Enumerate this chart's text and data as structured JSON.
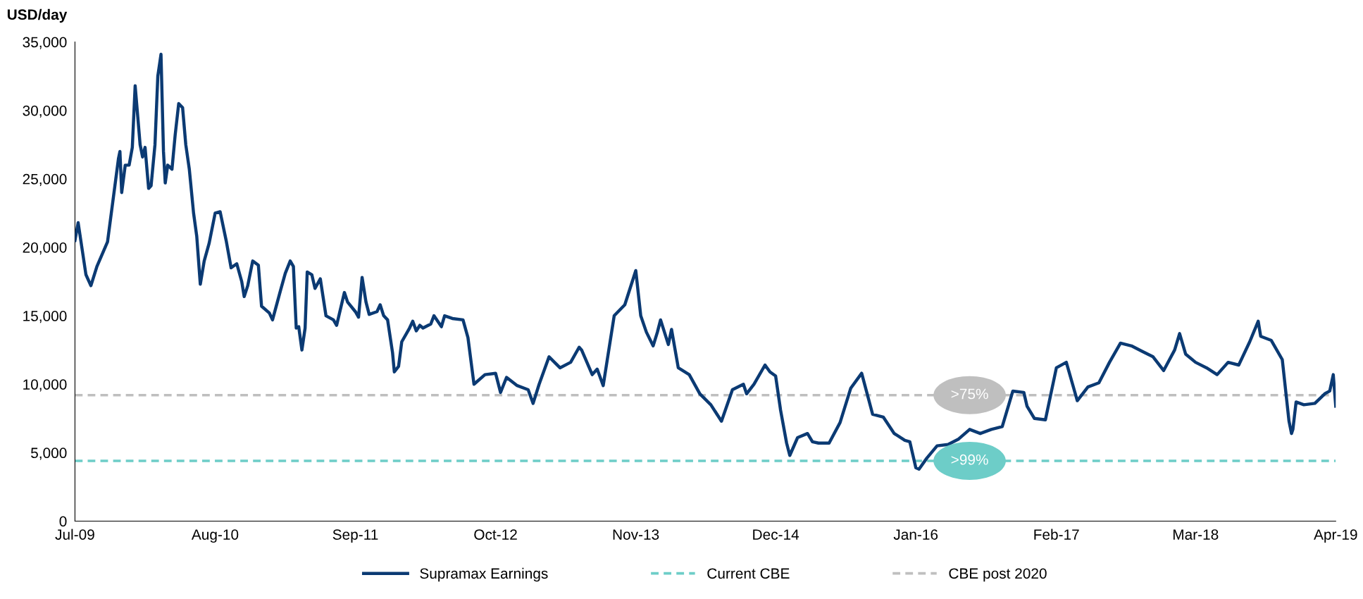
{
  "chart_data": {
    "type": "line",
    "ylabel": "USD/day",
    "x": [
      "2009-07-01",
      "2009-07-10",
      "2009-08-01",
      "2009-08-15",
      "2009-09-01",
      "2009-10-01",
      "2009-11-01",
      "2009-11-05",
      "2009-11-10",
      "2009-11-20",
      "2009-12-01",
      "2009-12-10",
      "2009-12-18",
      "2010-01-01",
      "2010-01-08",
      "2010-01-15",
      "2010-01-25",
      "2010-02-01",
      "2010-02-12",
      "2010-02-20",
      "2010-03-01",
      "2010-03-08",
      "2010-03-13",
      "2010-03-20",
      "2010-04-01",
      "2010-04-10",
      "2010-04-20",
      "2010-05-01",
      "2010-05-10",
      "2010-05-20",
      "2010-06-01",
      "2010-06-10",
      "2010-06-20",
      "2010-07-01",
      "2010-07-15",
      "2010-08-01",
      "2010-08-15",
      "2010-09-01",
      "2010-09-15",
      "2010-10-01",
      "2010-10-15",
      "2010-10-22",
      "2010-11-01",
      "2010-11-15",
      "2010-12-01",
      "2010-12-10",
      "2011-01-01",
      "2011-01-10",
      "2011-02-01",
      "2011-02-15",
      "2011-03-01",
      "2011-03-10",
      "2011-03-18",
      "2011-03-25",
      "2011-04-03",
      "2011-04-12",
      "2011-04-18",
      "2011-05-01",
      "2011-05-10",
      "2011-05-25",
      "2011-06-01",
      "2011-06-10",
      "2011-07-01",
      "2011-07-10",
      "2011-08-01",
      "2011-08-10",
      "2011-09-01",
      "2011-09-10",
      "2011-09-20",
      "2011-10-01",
      "2011-10-10",
      "2011-11-01",
      "2011-11-10",
      "2011-11-20",
      "2011-12-01",
      "2011-12-15",
      "2011-12-20",
      "2012-01-01",
      "2012-01-10",
      "2012-02-01",
      "2012-02-10",
      "2012-02-20",
      "2012-03-01",
      "2012-03-10",
      "2012-04-01",
      "2012-04-10",
      "2012-05-01",
      "2012-05-10",
      "2012-06-01",
      "2012-07-01",
      "2012-07-15",
      "2012-08-01",
      "2012-09-01",
      "2012-10-01",
      "2012-10-15",
      "2012-11-01",
      "2012-12-01",
      "2013-01-01",
      "2013-01-15",
      "2013-02-01",
      "2013-03-01",
      "2013-04-01",
      "2013-05-01",
      "2013-05-25",
      "2013-06-01",
      "2013-07-01",
      "2013-07-15",
      "2013-08-01",
      "2013-09-01",
      "2013-10-01",
      "2013-11-01",
      "2013-11-15",
      "2013-12-01",
      "2013-12-20",
      "2014-01-01",
      "2014-01-10",
      "2014-02-01",
      "2014-02-10",
      "2014-03-01",
      "2014-04-01",
      "2014-05-01",
      "2014-06-01",
      "2014-07-01",
      "2014-08-01",
      "2014-09-01",
      "2014-09-10",
      "2014-10-01",
      "2014-11-01",
      "2014-11-15",
      "2014-12-01",
      "2014-12-15",
      "2015-01-01",
      "2015-01-10",
      "2015-02-01",
      "2015-03-01",
      "2015-03-15",
      "2015-04-01",
      "2015-05-01",
      "2015-06-01",
      "2015-07-01",
      "2015-08-01",
      "2015-09-01",
      "2015-10-01",
      "2015-11-01",
      "2015-12-01",
      "2015-12-15",
      "2016-01-01",
      "2016-01-10",
      "2016-02-01",
      "2016-03-01",
      "2016-04-01",
      "2016-05-01",
      "2016-06-01",
      "2016-07-01",
      "2016-08-01",
      "2016-09-01",
      "2016-10-01",
      "2016-11-01",
      "2016-11-10",
      "2016-12-01",
      "2017-01-01",
      "2017-02-01",
      "2017-03-01",
      "2017-04-01",
      "2017-05-01",
      "2017-06-01",
      "2017-07-01",
      "2017-08-01",
      "2017-09-01",
      "2017-10-01",
      "2017-11-01",
      "2017-12-01",
      "2018-01-01",
      "2018-01-15",
      "2018-02-01",
      "2018-03-01",
      "2018-04-01",
      "2018-05-01",
      "2018-06-01",
      "2018-07-01",
      "2018-08-01",
      "2018-08-25",
      "2018-09-01",
      "2018-10-01",
      "2018-11-01",
      "2018-11-20",
      "2018-11-27",
      "2018-12-01",
      "2018-12-10",
      "2019-01-01",
      "2019-02-01",
      "2019-03-01",
      "2019-03-15",
      "2019-03-25",
      "2019-04-01"
    ],
    "series": [
      {
        "name": "Supramax Earnings",
        "color": "#0b3a73",
        "line_style": "solid",
        "values": [
          20500,
          21800,
          18000,
          17200,
          18600,
          20400,
          26500,
          27000,
          24000,
          26000,
          26000,
          27300,
          31800,
          27500,
          26600,
          27300,
          24300,
          24500,
          27500,
          32500,
          34100,
          27000,
          24700,
          26000,
          25700,
          28200,
          30500,
          30200,
          27500,
          25700,
          22500,
          20800,
          17300,
          19000,
          20300,
          22500,
          22600,
          20500,
          18500,
          18800,
          17500,
          16400,
          17200,
          19000,
          18700,
          15700,
          15200,
          14700,
          16800,
          18100,
          19000,
          18600,
          14100,
          14200,
          12500,
          14100,
          18200,
          18000,
          17000,
          17700,
          16500,
          15000,
          14700,
          14300,
          16700,
          16000,
          15300,
          14900,
          17800,
          16000,
          15100,
          15300,
          15800,
          15000,
          14700,
          12300,
          10900,
          11300,
          13100,
          14100,
          14600,
          13900,
          14300,
          14100,
          14400,
          15000,
          14200,
          15000,
          14800,
          14700,
          13400,
          10000,
          10700,
          10800,
          9400,
          10500,
          9900,
          9600,
          8600,
          10000,
          12000,
          11200,
          11600,
          12700,
          12500,
          10700,
          11100,
          9900,
          15000,
          15800,
          18300,
          15000,
          13800,
          12800,
          13800,
          14700,
          12900,
          14000,
          11200,
          10700,
          9300,
          8500,
          7300,
          9600,
          10000,
          9300,
          10000,
          11400,
          10900,
          10600,
          8100,
          5700,
          4800,
          6100,
          6400,
          5800,
          5700,
          5700,
          7200,
          9700,
          10800,
          7800,
          7600,
          6400,
          5900,
          5800,
          3900,
          3800,
          4600,
          5500,
          5600,
          6000,
          6700,
          6400,
          6700,
          6900,
          9500,
          9400,
          8400,
          7500,
          7400,
          11200,
          11600,
          8800,
          9800,
          10100,
          11600,
          13000,
          12800,
          12400,
          12000,
          11000,
          12500,
          13700,
          12200,
          11600,
          11200,
          10700,
          11600,
          11400,
          13100,
          14600,
          13500,
          13200,
          11800,
          7300,
          6400,
          6700,
          8700,
          8500,
          8600,
          9300,
          9500,
          10700,
          8400
        ]
      },
      {
        "name": "Current CBE",
        "color": "#6dcdc8",
        "line_style": "dashed",
        "x": [
          "2009-07-01",
          "2019-04-01"
        ],
        "values": [
          4400,
          4400
        ]
      },
      {
        "name": "CBE post 2020",
        "color": "#bfbfbf",
        "line_style": "dashed",
        "x": [
          "2009-07-01",
          "2019-04-01"
        ],
        "values": [
          9200,
          9200
        ]
      }
    ],
    "annotations": [
      {
        "text": ">75%",
        "x": "2016-06-01",
        "y": 9200
      },
      {
        "text": ">99%",
        "x": "2016-06-01",
        "y": 4400
      }
    ],
    "xlim": [
      "2009-07-01",
      "2019-04-01"
    ],
    "xticks": [
      {
        "value": "2009-07-01",
        "label": "Jul-09"
      },
      {
        "value": "2010-08-01",
        "label": "Aug-10"
      },
      {
        "value": "2011-09-01",
        "label": "Sep-11"
      },
      {
        "value": "2012-10-01",
        "label": "Oct-12"
      },
      {
        "value": "2013-11-01",
        "label": "Nov-13"
      },
      {
        "value": "2014-12-01",
        "label": "Dec-14"
      },
      {
        "value": "2016-01-01",
        "label": "Jan-16"
      },
      {
        "value": "2017-02-01",
        "label": "Feb-17"
      },
      {
        "value": "2018-03-01",
        "label": "Mar-18"
      },
      {
        "value": "2019-04-01",
        "label": "Apr-19"
      }
    ],
    "ylim": [
      0,
      35000
    ],
    "yticks": [
      0,
      {
        "value": 5000,
        "label": "5,000"
      },
      {
        "value": 10000,
        "label": "10,000"
      },
      {
        "value": 15000,
        "label": "15,000"
      },
      {
        "value": 20000,
        "label": "20,000"
      },
      {
        "value": 25000,
        "label": "25,000"
      },
      {
        "value": 30000,
        "label": "30,000"
      },
      {
        "value": 35000,
        "label": "35,000"
      }
    ],
    "grid": false,
    "legend": "bottom"
  }
}
